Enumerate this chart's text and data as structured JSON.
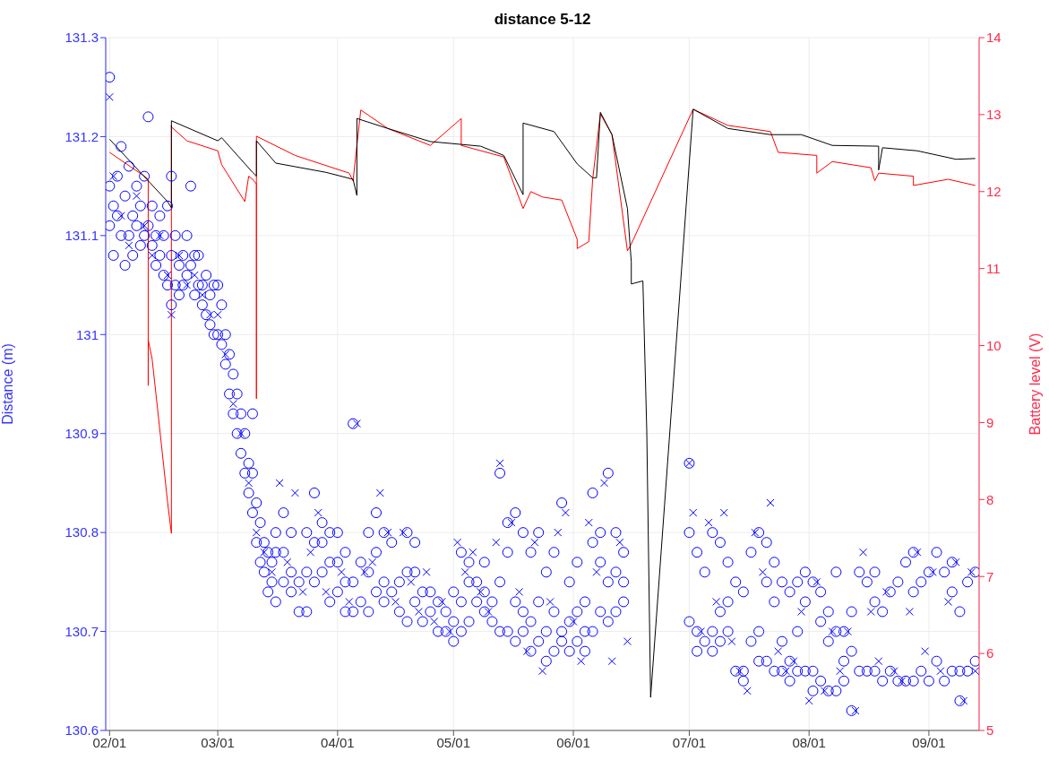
{
  "chart_data": {
    "type": "scatter",
    "title": "distance 5-12",
    "ylabel": "Distance (m)",
    "y2label": "Battery level (V)",
    "xlim": [
      "--01-31",
      "--09-14"
    ],
    "xticks": [
      {
        "value": "--02-01",
        "label": "02/01"
      },
      {
        "value": "--03-01",
        "label": "03/01"
      },
      {
        "value": "--04-01",
        "label": "04/01"
      },
      {
        "value": "--05-01",
        "label": "05/01"
      },
      {
        "value": "--06-01",
        "label": "06/01"
      },
      {
        "value": "--07-01",
        "label": "07/01"
      },
      {
        "value": "--08-01",
        "label": "08/01"
      },
      {
        "value": "--09-01",
        "label": "09/01"
      }
    ],
    "ylim": [
      130.6,
      131.3
    ],
    "yticks": [
      130.6,
      130.7,
      130.8,
      130.9,
      131,
      131.1,
      131.2,
      131.3
    ],
    "y2lim": [
      5,
      14
    ],
    "y2ticks": [
      5,
      6,
      7,
      8,
      9,
      10,
      11,
      12,
      13,
      14
    ],
    "grid": true,
    "series": [
      {
        "type": "line",
        "axis": "y2",
        "color": "#ff0000",
        "marker": "none",
        "line_style": "solid",
        "x": [
          "--02-01",
          "--02-10",
          "--02-11",
          "--02-11",
          "--02-11",
          "--02-12",
          "--02-13",
          "--02-15",
          "--02-16",
          "--02-17",
          "--02-17",
          "--02-17",
          "--02-21",
          "--03-01",
          "--03-02",
          "--03-08",
          "--03-09",
          "--03-10",
          "--03-11",
          "--03-11",
          "--03-11",
          "--03-21",
          "--04-04",
          "--04-05",
          "--04-07",
          "--04-14",
          "--04-25",
          "--05-03",
          "--05-03",
          "--05-14",
          "--05-19",
          "--05-21",
          "--05-24",
          "--05-29",
          "--06-02",
          "--06-02",
          "--06-05",
          "--06-06",
          "--06-08",
          "--06-11",
          "--06-15",
          "--06-16",
          "--07-02",
          "--07-11",
          "--07-22",
          "--07-24",
          "--08-03",
          "--08-03",
          "--08-07",
          "--08-17",
          "--08-18",
          "--08-19",
          "--08-28",
          "--08-28",
          "--09-06",
          "--09-13"
        ],
        "values": [
          12.51,
          12.2,
          12.16,
          9.48,
          10.07,
          9.83,
          9.37,
          8.44,
          7.97,
          7.56,
          12.86,
          12.84,
          12.66,
          12.53,
          12.35,
          11.87,
          12.2,
          12.16,
          12.1,
          9.31,
          12.72,
          12.47,
          12.24,
          12.14,
          13.06,
          12.82,
          12.6,
          12.95,
          12.6,
          12.45,
          11.78,
          12.0,
          11.93,
          11.89,
          11.38,
          11.26,
          11.35,
          12.16,
          13.01,
          12.74,
          11.23,
          11.32,
          13.07,
          12.86,
          12.78,
          12.51,
          12.47,
          12.24,
          12.39,
          12.31,
          12.14,
          12.24,
          12.2,
          12.08,
          12.16,
          12.08
        ]
      },
      {
        "type": "line",
        "axis": "y2",
        "color": "#000000",
        "marker": "none",
        "line_style": "solid",
        "x": [
          "--02-01",
          "--02-16",
          "--02-17",
          "--02-17",
          "--03-01",
          "--03-02",
          "--03-10",
          "--03-11",
          "--03-11",
          "--03-16",
          "--03-29",
          "--04-05",
          "--04-06",
          "--04-06",
          "--04-14",
          "--04-25",
          "--05-08",
          "--05-14",
          "--05-19",
          "--05-19",
          "--05-27",
          "--06-02",
          "--06-06",
          "--06-07",
          "--06-08",
          "--06-11",
          "--06-15",
          "--06-16",
          "--06-16",
          "--06-19",
          "--06-20",
          "--06-21",
          "--07-02",
          "--07-11",
          "--07-22",
          "--07-30",
          "--08-07",
          "--08-19",
          "--08-19",
          "--08-20",
          "--08-29",
          "--09-08",
          "--09-13"
        ],
        "values": [
          12.68,
          11.87,
          11.79,
          12.92,
          12.66,
          12.7,
          12.25,
          12.2,
          12.66,
          12.37,
          12.25,
          12.16,
          11.95,
          12.95,
          12.82,
          12.65,
          12.59,
          12.47,
          11.96,
          12.89,
          12.78,
          12.36,
          12.18,
          12.18,
          13.03,
          12.74,
          11.78,
          11.08,
          10.8,
          10.84,
          8.9,
          5.43,
          13.07,
          12.82,
          12.74,
          12.74,
          12.6,
          12.59,
          12.28,
          12.57,
          12.53,
          12.42,
          12.43
        ]
      },
      {
        "color": "#0000ff",
        "marker": "circle",
        "x": [
          "--02-01",
          "--02-01",
          "--02-01",
          "--02-02",
          "--02-02",
          "--02-03",
          "--02-03",
          "--02-04",
          "--02-04",
          "--02-05",
          "--02-05",
          "--02-06",
          "--02-06",
          "--02-07",
          "--02-07",
          "--02-08",
          "--02-08",
          "--02-09",
          "--02-09",
          "--02-10",
          "--02-10",
          "--02-11",
          "--02-11",
          "--02-12",
          "--02-12",
          "--02-13",
          "--02-13",
          "--02-14",
          "--02-14",
          "--02-15",
          "--02-15",
          "--02-16",
          "--02-16",
          "--02-17",
          "--02-17",
          "--02-17",
          "--02-18",
          "--02-18",
          "--02-19",
          "--02-19",
          "--02-20",
          "--02-20",
          "--02-21",
          "--02-21",
          "--02-22",
          "--02-22",
          "--02-23",
          "--02-23",
          "--02-24",
          "--02-24",
          "--02-25",
          "--02-25",
          "--02-26",
          "--02-26",
          "--02-27",
          "--02-27",
          "--02-28",
          "--02-28",
          "--03-01",
          "--03-01",
          "--03-02",
          "--03-02",
          "--03-03",
          "--03-03",
          "--03-04",
          "--03-04",
          "--03-05",
          "--03-05",
          "--03-06",
          "--03-06",
          "--03-07",
          "--03-07",
          "--03-08",
          "--03-08",
          "--03-09",
          "--03-09",
          "--03-10",
          "--03-10",
          "--03-10",
          "--03-11",
          "--03-11",
          "--03-12",
          "--03-12",
          "--03-13",
          "--03-13",
          "--03-14",
          "--03-14",
          "--03-15",
          "--03-15",
          "--03-16",
          "--03-16",
          "--03-16",
          "--03-18",
          "--03-18",
          "--03-18",
          "--03-20",
          "--03-20",
          "--03-20",
          "--03-22",
          "--03-22",
          "--03-24",
          "--03-24",
          "--03-24",
          "--03-26",
          "--03-26",
          "--03-26",
          "--03-28",
          "--03-28",
          "--03-28",
          "--03-30",
          "--03-30",
          "--03-30",
          "--04-01",
          "--04-01",
          "--04-01",
          "--04-03",
          "--04-03",
          "--04-03",
          "--04-05",
          "--04-05",
          "--04-05",
          "--04-07",
          "--04-07",
          "--04-09",
          "--04-09",
          "--04-09",
          "--04-11",
          "--04-11",
          "--04-11",
          "--04-13",
          "--04-13",
          "--04-13",
          "--04-15",
          "--04-15",
          "--04-17",
          "--04-17",
          "--04-19",
          "--04-19",
          "--04-19",
          "--04-21",
          "--04-21",
          "--04-21",
          "--04-23",
          "--04-23",
          "--04-25",
          "--04-25",
          "--04-27",
          "--04-27",
          "--04-29",
          "--04-29",
          "--05-01",
          "--05-01",
          "--05-01",
          "--05-03",
          "--05-03",
          "--05-03",
          "--05-05",
          "--05-05",
          "--05-05",
          "--05-07",
          "--05-07",
          "--05-09",
          "--05-09",
          "--05-09",
          "--05-11",
          "--05-11",
          "--05-13",
          "--05-13",
          "--05-13",
          "--05-15",
          "--05-15",
          "--05-15",
          "--05-17",
          "--05-17",
          "--05-17",
          "--05-19",
          "--05-19",
          "--05-19",
          "--05-21",
          "--05-21",
          "--05-21",
          "--05-23",
          "--05-23",
          "--05-23",
          "--05-25",
          "--05-25",
          "--05-25",
          "--05-27",
          "--05-27",
          "--05-27",
          "--05-29",
          "--05-29",
          "--05-29",
          "--05-31",
          "--05-31",
          "--05-31",
          "--06-02",
          "--06-02",
          "--06-02",
          "--06-04",
          "--06-04",
          "--06-04",
          "--06-06",
          "--06-06",
          "--06-06",
          "--06-08",
          "--06-08",
          "--06-08",
          "--06-10",
          "--06-10",
          "--06-10",
          "--06-12",
          "--06-12",
          "--06-12",
          "--06-14",
          "--06-14",
          "--06-14",
          "--07-01",
          "--07-01",
          "--07-01",
          "--07-03",
          "--07-03",
          "--07-03",
          "--07-05",
          "--07-05",
          "--07-07",
          "--07-07",
          "--07-07",
          "--07-09",
          "--07-09",
          "--07-09",
          "--07-11",
          "--07-11",
          "--07-11",
          "--07-13",
          "--07-13",
          "--07-15",
          "--07-15",
          "--07-15",
          "--07-17",
          "--07-17",
          "--07-19",
          "--07-19",
          "--07-19",
          "--07-21",
          "--07-21",
          "--07-21",
          "--07-23",
          "--07-23",
          "--07-23",
          "--07-25",
          "--07-25",
          "--07-25",
          "--07-27",
          "--07-27",
          "--07-27",
          "--07-29",
          "--07-29",
          "--07-29",
          "--07-31",
          "--07-31",
          "--07-31",
          "--08-02",
          "--08-02",
          "--08-02",
          "--08-04",
          "--08-04",
          "--08-04",
          "--08-06",
          "--08-06",
          "--08-06",
          "--08-08",
          "--08-08",
          "--08-08",
          "--08-10",
          "--08-10",
          "--08-10",
          "--08-12",
          "--08-12",
          "--08-12",
          "--08-14",
          "--08-14",
          "--08-16",
          "--08-16",
          "--08-18",
          "--08-18",
          "--08-18",
          "--08-20",
          "--08-20",
          "--08-22",
          "--08-22",
          "--08-24",
          "--08-24",
          "--08-26",
          "--08-26",
          "--08-28",
          "--08-28",
          "--08-28",
          "--08-30",
          "--08-30",
          "--09-01",
          "--09-01",
          "--09-03",
          "--09-03",
          "--09-05",
          "--09-05",
          "--09-07",
          "--09-07",
          "--09-07",
          "--09-09",
          "--09-09",
          "--09-09",
          "--09-11",
          "--09-11",
          "--09-13",
          "--09-13"
        ],
        "values": [
          131.26,
          131.15,
          131.11,
          131.13,
          131.08,
          131.12,
          131.16,
          131.19,
          131.1,
          131.14,
          131.07,
          131.17,
          131.1,
          131.12,
          131.08,
          131.15,
          131.11,
          131.13,
          131.09,
          131.16,
          131.1,
          131.22,
          131.11,
          131.09,
          131.13,
          131.1,
          131.07,
          131.08,
          131.12,
          131.06,
          131.1,
          131.05,
          131.13,
          131.03,
          131.16,
          131.08,
          131.1,
          131.05,
          131.07,
          131.04,
          131.08,
          131.05,
          131.06,
          131.1,
          131.15,
          131.07,
          131.04,
          131.08,
          131.05,
          131.08,
          131.05,
          131.03,
          131.06,
          131.02,
          131.04,
          131.01,
          131.05,
          131.0,
          131.05,
          131.0,
          130.99,
          131.03,
          130.97,
          131.0,
          130.94,
          130.98,
          130.92,
          130.96,
          130.9,
          130.94,
          130.88,
          130.92,
          130.86,
          130.9,
          130.84,
          130.87,
          130.82,
          130.86,
          130.92,
          130.79,
          130.83,
          130.77,
          130.81,
          130.76,
          130.79,
          130.74,
          130.78,
          130.75,
          130.77,
          130.73,
          130.78,
          130.8,
          130.75,
          130.78,
          130.82,
          130.74,
          130.76,
          130.8,
          130.72,
          130.75,
          130.72,
          130.76,
          130.8,
          130.75,
          130.79,
          130.84,
          130.76,
          130.79,
          130.81,
          130.73,
          130.77,
          130.8,
          130.74,
          130.77,
          130.8,
          130.72,
          130.75,
          130.78,
          130.72,
          130.75,
          130.91,
          130.73,
          130.77,
          130.72,
          130.76,
          130.8,
          130.74,
          130.78,
          130.82,
          130.73,
          130.75,
          130.8,
          130.74,
          130.79,
          130.72,
          130.75,
          130.71,
          130.76,
          130.8,
          130.73,
          130.76,
          130.79,
          130.71,
          130.74,
          130.72,
          130.74,
          130.7,
          130.73,
          130.7,
          130.72,
          130.69,
          130.71,
          130.74,
          130.7,
          130.73,
          130.78,
          130.71,
          130.75,
          130.77,
          130.73,
          130.75,
          130.72,
          130.74,
          130.77,
          130.71,
          130.73,
          130.7,
          130.75,
          130.86,
          130.7,
          130.78,
          130.81,
          130.69,
          130.73,
          130.82,
          130.7,
          130.72,
          130.8,
          130.68,
          130.71,
          130.78,
          130.69,
          130.73,
          130.8,
          130.67,
          130.7,
          130.76,
          130.68,
          130.72,
          130.78,
          130.69,
          130.7,
          130.83,
          130.68,
          130.71,
          130.75,
          130.69,
          130.72,
          130.77,
          130.68,
          130.7,
          130.73,
          130.7,
          130.79,
          130.84,
          130.72,
          130.77,
          130.8,
          130.71,
          130.75,
          130.86,
          130.72,
          130.76,
          130.8,
          130.73,
          130.75,
          130.78,
          130.87,
          130.8,
          130.71,
          130.78,
          130.7,
          130.68,
          130.76,
          130.69,
          130.8,
          130.7,
          130.68,
          130.79,
          130.72,
          130.69,
          130.77,
          130.73,
          130.7,
          130.75,
          130.66,
          130.74,
          130.66,
          130.65,
          130.78,
          130.69,
          130.8,
          130.7,
          130.67,
          130.79,
          130.75,
          130.67,
          130.77,
          130.73,
          130.66,
          130.75,
          130.69,
          130.66,
          130.74,
          130.67,
          130.65,
          130.75,
          130.7,
          130.66,
          130.76,
          130.73,
          130.66,
          130.75,
          130.66,
          130.64,
          130.74,
          130.71,
          130.65,
          130.72,
          130.69,
          130.64,
          130.76,
          130.7,
          130.64,
          130.7,
          130.67,
          130.65,
          130.72,
          130.68,
          130.62,
          130.76,
          130.66,
          130.75,
          130.66,
          130.76,
          130.73,
          130.66,
          130.72,
          130.65,
          130.74,
          130.66,
          130.75,
          130.65,
          130.77,
          130.65,
          130.78,
          130.74,
          130.65,
          130.75,
          130.66,
          130.76,
          130.65,
          130.78,
          130.67,
          130.76,
          130.65,
          130.77,
          130.74,
          130.66,
          130.72,
          130.66,
          130.63,
          130.75,
          130.66,
          130.76,
          130.67
        ]
      },
      {
        "color": "#0000ff",
        "marker": "cross",
        "x": [
          "--02-01",
          "--02-02",
          "--02-04",
          "--02-06",
          "--02-08",
          "--02-10",
          "--02-12",
          "--02-14",
          "--02-16",
          "--02-17",
          "--02-19",
          "--02-21",
          "--02-23",
          "--02-25",
          "--02-27",
          "--03-01",
          "--03-03",
          "--03-05",
          "--03-07",
          "--03-09",
          "--03-11",
          "--03-13",
          "--03-15",
          "--03-17",
          "--03-19",
          "--03-21",
          "--03-23",
          "--03-25",
          "--03-27",
          "--03-29",
          "--04-02",
          "--04-04",
          "--04-06",
          "--04-08",
          "--04-10",
          "--04-12",
          "--04-14",
          "--04-16",
          "--04-18",
          "--04-20",
          "--04-22",
          "--04-24",
          "--04-26",
          "--04-28",
          "--04-30",
          "--05-02",
          "--05-04",
          "--05-06",
          "--05-08",
          "--05-10",
          "--05-12",
          "--05-13",
          "--05-16",
          "--05-18",
          "--05-20",
          "--05-22",
          "--05-24",
          "--05-26",
          "--05-28",
          "--05-30",
          "--06-01",
          "--06-03",
          "--06-05",
          "--06-07",
          "--06-09",
          "--06-11",
          "--06-13",
          "--06-15",
          "--07-01",
          "--07-02",
          "--07-04",
          "--07-06",
          "--07-08",
          "--07-10",
          "--07-12",
          "--07-14",
          "--07-16",
          "--07-18",
          "--07-20",
          "--07-22",
          "--07-24",
          "--07-26",
          "--07-28",
          "--07-30",
          "--08-01",
          "--08-03",
          "--08-05",
          "--08-07",
          "--08-09",
          "--08-11",
          "--08-13",
          "--08-15",
          "--08-17",
          "--08-19",
          "--08-21",
          "--08-23",
          "--08-25",
          "--08-27",
          "--08-29",
          "--08-31",
          "--09-02",
          "--09-04",
          "--09-06",
          "--09-08",
          "--09-10",
          "--09-12",
          "--09-13"
        ],
        "values": [
          131.24,
          131.16,
          131.12,
          131.09,
          131.14,
          131.11,
          131.08,
          131.1,
          131.06,
          131.02,
          131.08,
          131.05,
          131.06,
          131.04,
          131.02,
          131.02,
          130.98,
          130.93,
          130.9,
          130.85,
          130.8,
          130.78,
          130.76,
          130.85,
          130.77,
          130.84,
          130.74,
          130.78,
          130.82,
          130.74,
          130.76,
          130.73,
          130.91,
          130.76,
          130.77,
          130.84,
          130.8,
          130.73,
          130.8,
          130.75,
          130.72,
          130.76,
          130.71,
          130.73,
          130.7,
          130.79,
          130.76,
          130.78,
          130.74,
          130.72,
          130.79,
          130.87,
          130.81,
          130.74,
          130.68,
          130.79,
          130.66,
          130.73,
          130.8,
          130.82,
          130.71,
          130.67,
          130.81,
          130.76,
          130.85,
          130.67,
          130.79,
          130.69,
          130.87,
          130.82,
          130.7,
          130.81,
          130.73,
          130.82,
          130.69,
          130.66,
          130.64,
          130.8,
          130.76,
          130.83,
          130.68,
          130.66,
          130.67,
          130.72,
          130.63,
          130.75,
          130.64,
          130.7,
          130.66,
          130.7,
          130.62,
          130.78,
          130.72,
          130.67,
          130.74,
          130.66,
          130.65,
          130.72,
          130.78,
          130.68,
          130.76,
          130.66,
          130.73,
          130.77,
          130.63,
          130.76,
          130.66
        ]
      }
    ]
  }
}
